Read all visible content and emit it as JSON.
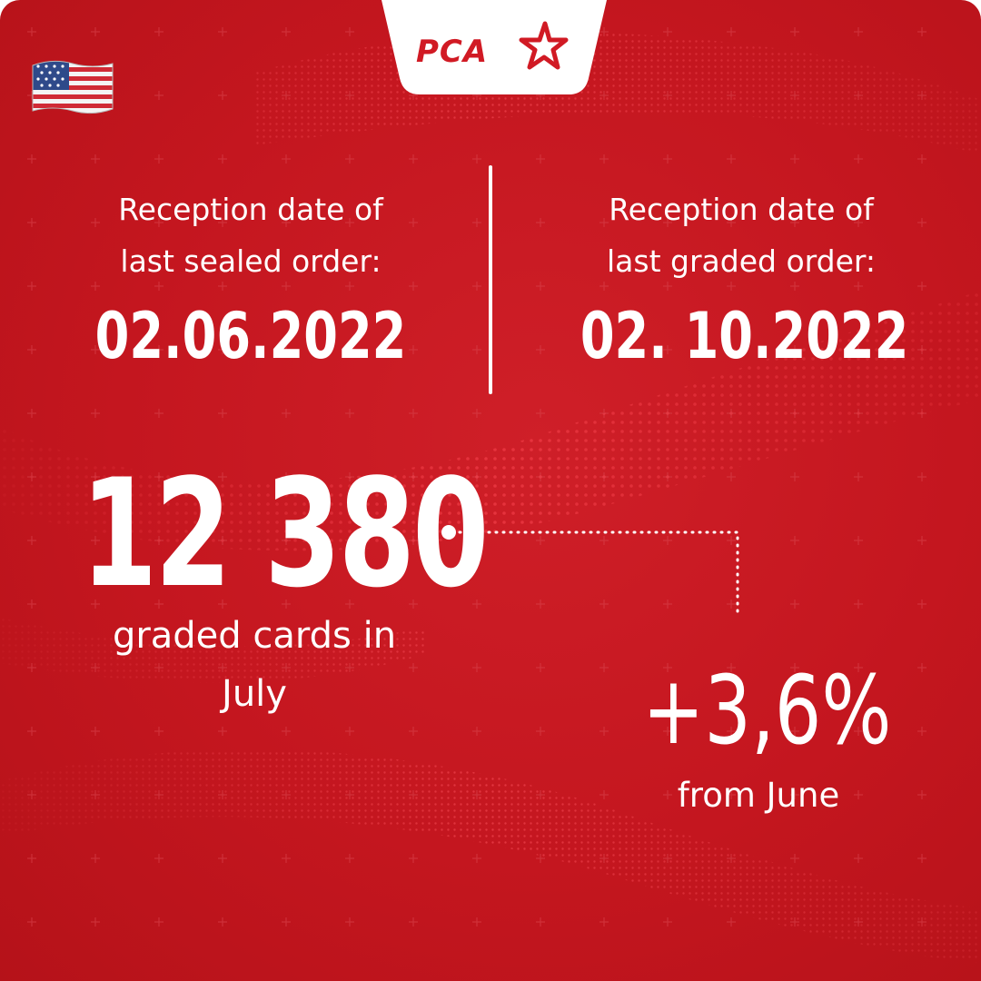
{
  "brand": {
    "logo_text": "PCA",
    "color": "#d11a24"
  },
  "flag_icon": "us-flag-icon",
  "left_block": {
    "label_line1": "Reception date of",
    "label_line2": "last sealed  order:",
    "date": "02.06.2022"
  },
  "right_block": {
    "label_line1": "Reception date of",
    "label_line2": "last graded order:",
    "date": "02. 10.2022"
  },
  "stats": {
    "count": "12 380",
    "count_caption_line1": "graded cards in",
    "count_caption_line2": "July",
    "change": "+3,6%",
    "change_caption": "from June"
  },
  "colors": {
    "background": "#c4161f",
    "text": "#ffffff",
    "tab": "#ffffff"
  }
}
